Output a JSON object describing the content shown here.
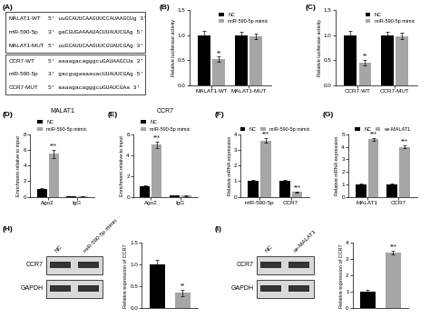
{
  "sequences": {
    "panel": "(A)",
    "groups": [
      [
        {
          "name": "MALAT1-WT",
          "sequence": "5' uuGCAUUCAAGUUCCAUAAGCUg 3'"
        },
        {
          "name": "miR-590-5p",
          "sequence": "3' gaCGUGAAAAUACUUAUUCGAg 5'"
        },
        {
          "name": "MALAT1-MUT",
          "sequence": "5' uuGCAUUCAAGUUCGUAUCGAg 3'"
        }
      ],
      [
        {
          "name": "CCR7-WT",
          "sequence": "5' aaaagacagggcuGAUAAGCUa 3'"
        },
        {
          "name": "miR-590-5p",
          "sequence": "3' gacgugaaaauacUUAUUCGAg 5'"
        },
        {
          "name": "CCR7-MUT",
          "sequence": "5' aaaagacagggcuGUAUCGAa 3'"
        }
      ]
    ]
  },
  "chart_data": [
    {
      "type": "bar",
      "panel": "(B)",
      "y_label": "Relative luciferase activity",
      "categories": [
        "MALAT1-WT",
        "MALAT1-MUT"
      ],
      "series": [
        {
          "name": "NC",
          "color": "#000000",
          "values": [
            1.0,
            1.0
          ],
          "errors": [
            0.08,
            0.07
          ],
          "marks": [
            null,
            null
          ]
        },
        {
          "name": "miR-590-5p mimic",
          "color": "#a6a6a6",
          "values": [
            0.52,
            0.97
          ],
          "errors": [
            0.05,
            0.06
          ],
          "marks": [
            "**",
            null
          ]
        }
      ],
      "ylim": [
        0,
        1.5
      ],
      "yticks": [
        {
          "value": 0,
          "label": "0.0"
        },
        {
          "value": 0.5,
          "label": "0.5"
        },
        {
          "value": 1.0,
          "label": "1.0"
        },
        {
          "value": 1.5,
          "label": "1.5"
        }
      ],
      "legend": "upper right"
    },
    {
      "type": "bar",
      "panel": "(C)",
      "y_label": "Relative luciferase activity",
      "categories": [
        "CCR7-WT",
        "CCR7-MUT"
      ],
      "series": [
        {
          "name": "NC",
          "color": "#000000",
          "values": [
            1.0,
            1.0
          ],
          "errors": [
            0.09,
            0.07
          ],
          "marks": [
            null,
            null
          ]
        },
        {
          "name": "miR-590-5p mimic",
          "color": "#a6a6a6",
          "values": [
            0.45,
            0.98
          ],
          "errors": [
            0.06,
            0.06
          ],
          "marks": [
            "**",
            null
          ]
        }
      ],
      "ylim": [
        0,
        1.5
      ],
      "yticks": [
        {
          "value": 0,
          "label": "0.0"
        },
        {
          "value": 0.5,
          "label": "0.5"
        },
        {
          "value": 1.0,
          "label": "1.0"
        },
        {
          "value": 1.5,
          "label": "1.5"
        }
      ],
      "legend": "upper right"
    },
    {
      "type": "bar",
      "panel": "(D)",
      "title": "MALAT1",
      "y_label": "Enrichment relative to input",
      "categories": [
        "Ago2",
        "IgG"
      ],
      "series": [
        {
          "name": "NC",
          "color": "#000000",
          "values": [
            1.0,
            0.1
          ],
          "errors": [
            0.1,
            0.02
          ],
          "marks": [
            null,
            null
          ]
        },
        {
          "name": "miR-590-5p mimic",
          "color": "#a6a6a6",
          "values": [
            5.5,
            0.1
          ],
          "errors": [
            0.5,
            0.02
          ],
          "marks": [
            "***",
            null
          ]
        }
      ],
      "ylim": [
        0,
        8
      ],
      "yticks": [
        0,
        2,
        4,
        6,
        8
      ],
      "legend": "top"
    },
    {
      "type": "bar",
      "panel": "(E)",
      "title": "CCR7",
      "y_label": "Enrichment relative to input",
      "categories": [
        "Ago2",
        "IgG"
      ],
      "series": [
        {
          "name": "NC",
          "color": "#000000",
          "values": [
            1.0,
            0.1
          ],
          "errors": [
            0.08,
            0.02
          ],
          "marks": [
            null,
            null
          ]
        },
        {
          "name": "miR-590-5p mimic",
          "color": "#a6a6a6",
          "values": [
            5.0,
            0.1
          ],
          "errors": [
            0.3,
            0.02
          ],
          "marks": [
            "***",
            null
          ]
        }
      ],
      "ylim": [
        0,
        6
      ],
      "yticks": [
        0,
        2,
        4,
        6
      ],
      "legend": "top"
    },
    {
      "type": "bar",
      "panel": "(F)",
      "y_label": "Relative mRNA expression",
      "categories": [
        "miR-590-5p",
        "CCR7"
      ],
      "series": [
        {
          "name": "NC",
          "color": "#000000",
          "values": [
            1.0,
            1.0
          ],
          "errors": [
            0.08,
            0.06
          ],
          "marks": [
            null,
            null
          ]
        },
        {
          "name": "miR-590-5p mimic",
          "color": "#a6a6a6",
          "values": [
            3.6,
            0.3
          ],
          "errors": [
            0.15,
            0.05
          ],
          "marks": [
            "***",
            "***"
          ]
        }
      ],
      "ylim": [
        0,
        4
      ],
      "yticks": [
        0,
        1,
        2,
        3,
        4
      ],
      "legend": "top"
    },
    {
      "type": "bar",
      "panel": "(G)",
      "y_label": "Relative mRNA expression",
      "categories": [
        "MALAT1",
        "CCR7"
      ],
      "series": [
        {
          "name": "NC",
          "color": "#000000",
          "values": [
            1.0,
            1.0
          ],
          "errors": [
            0.06,
            0.07
          ],
          "marks": [
            null,
            null
          ]
        },
        {
          "name": "oe-MALAT1",
          "color": "#a6a6a6",
          "values": [
            4.6,
            4.0
          ],
          "errors": [
            0.1,
            0.12
          ],
          "marks": [
            "***",
            "***"
          ]
        }
      ],
      "ylim": [
        0,
        5
      ],
      "yticks": [
        0,
        1,
        2,
        3,
        4,
        5
      ],
      "legend": "top"
    },
    {
      "type": "bar",
      "panel": "(H)",
      "y_label": "Relative expression of CCR7",
      "blot": {
        "lanes": [
          "NC",
          "miR-590-5p mimic"
        ],
        "bands": [
          "CCR7",
          "GAPDH"
        ]
      },
      "categories": [
        null,
        null
      ],
      "values": [
        1.0,
        0.35
      ],
      "errors": [
        0.1,
        0.08
      ],
      "colors": [
        "#000000",
        "#a6a6a6"
      ],
      "marks": [
        null,
        "**"
      ],
      "ylim": [
        0,
        1.5
      ],
      "yticks": [
        {
          "value": 0,
          "label": "0.0"
        },
        {
          "value": 0.5,
          "label": "0.5"
        },
        {
          "value": 1.0,
          "label": "1.0"
        },
        {
          "value": 1.5,
          "label": "1.5"
        }
      ],
      "tick_labels": "y"
    },
    {
      "type": "bar",
      "panel": "(I)",
      "y_label": "Relative expression of CCR7",
      "blot": {
        "lanes": [
          "NC",
          "oe-MALAT1"
        ],
        "bands": [
          "CCR7",
          "GAPDH"
        ]
      },
      "categories": [
        null,
        null
      ],
      "values": [
        1.0,
        3.4
      ],
      "errors": [
        0.1,
        0.12
      ],
      "colors": [
        "#000000",
        "#a6a6a6"
      ],
      "marks": [
        null,
        "***"
      ],
      "ylim": [
        0,
        4
      ],
      "yticks": [
        0,
        1,
        2,
        3,
        4
      ],
      "tick_labels": "y"
    }
  ]
}
